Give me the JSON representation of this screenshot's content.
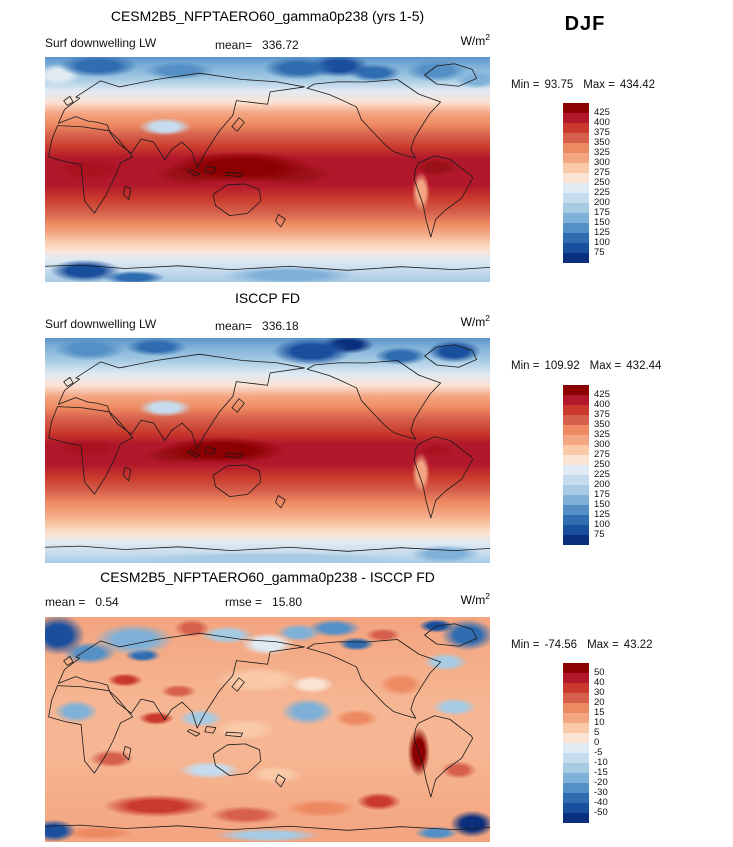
{
  "header": {
    "season": "DJF"
  },
  "chart_data": [
    {
      "type": "heatmap",
      "panel": "model",
      "title": "CESM2B5_NFPTAERO60_gamma0p238 (yrs 1-5)",
      "variable": "Surf downwelling LW",
      "season": "DJF",
      "units": "W/m^2",
      "mean": 336.72,
      "min": 93.75,
      "max": 434.42,
      "levels": [
        75,
        100,
        125,
        150,
        175,
        200,
        225,
        250,
        275,
        300,
        325,
        350,
        375,
        400,
        425
      ],
      "projection": "global equirectangular map, high values (dark red) in tropics, low values (blue) at poles",
      "legend_position": "right"
    },
    {
      "type": "heatmap",
      "panel": "observation",
      "title": "ISCCP FD",
      "variable": "Surf downwelling LW",
      "season": "DJF",
      "units": "W/m^2",
      "mean": 336.18,
      "min": 109.92,
      "max": 432.44,
      "levels": [
        75,
        100,
        125,
        150,
        175,
        200,
        225,
        250,
        275,
        300,
        325,
        350,
        375,
        400,
        425
      ],
      "projection": "global equirectangular map, high values (dark red) in tropics, low values (blue) at poles",
      "legend_position": "right"
    },
    {
      "type": "heatmap",
      "panel": "difference",
      "title": "CESM2B5_NFPTAERO60_gamma0p238 - ISCCP FD",
      "season": "DJF",
      "units": "W/m^2",
      "mean": 0.54,
      "rmse": 15.8,
      "min": -74.56,
      "max": 43.22,
      "levels": [
        -50,
        -40,
        -30,
        -20,
        -15,
        -10,
        -5,
        0,
        5,
        10,
        15,
        20,
        30,
        40,
        50
      ],
      "projection": "global equirectangular difference map, mottled red/blue anomalies",
      "legend_position": "right"
    }
  ],
  "panels": [
    {
      "title": "CESM2B5_NFPTAERO60_gamma0p238 (yrs 1-5)",
      "var_label": "Surf downwelling LW",
      "stats": [
        {
          "label": "mean=",
          "value": "336.72"
        }
      ],
      "units_base": "W/m",
      "units_exp": "2",
      "minmax": {
        "min_label": "Min =",
        "min": "93.75",
        "max_label": "Max =",
        "max": "434.42"
      },
      "colorbar": {
        "ticks": [
          "425",
          "400",
          "375",
          "350",
          "325",
          "300",
          "275",
          "250",
          "225",
          "200",
          "175",
          "150",
          "125",
          "100",
          "75"
        ],
        "colors": [
          "#8b0000",
          "#b2182b",
          "#ca3a2c",
          "#d6604d",
          "#ee8a62",
          "#f4a582",
          "#f9c9a8",
          "#fbe3d4",
          "#dfeaf3",
          "#c6dbed",
          "#a6cbe3",
          "#7fb0d8",
          "#5490c6",
          "#2f6cb0",
          "#1a4f9e",
          "#0a2f7c"
        ]
      },
      "field": {
        "base": [
          [
            0,
            "#5b93c9"
          ],
          [
            4,
            "#7fb0d8"
          ],
          [
            10,
            "#a6cbe3"
          ],
          [
            15,
            "#dfeaf3"
          ],
          [
            20,
            "#fbe3d4"
          ],
          [
            25,
            "#f4a582"
          ],
          [
            30,
            "#ee8a62"
          ],
          [
            35,
            "#d6604d"
          ],
          [
            40,
            "#ca3a2c"
          ],
          [
            45,
            "#b2182b"
          ],
          [
            57,
            "#b2182b"
          ],
          [
            63,
            "#ca3a2c"
          ],
          [
            69,
            "#d6604d"
          ],
          [
            74,
            "#ee8a62"
          ],
          [
            78,
            "#f4a582"
          ],
          [
            82,
            "#f9c9a8"
          ],
          [
            86,
            "#fbe3d4"
          ],
          [
            90,
            "#dfeaf3"
          ],
          [
            95,
            "#c6dbed"
          ],
          [
            100,
            "#a6cbe3"
          ]
        ],
        "blobs": [
          [
            12,
            4,
            9,
            5,
            "#2f6cb0"
          ],
          [
            3,
            8,
            5,
            5,
            "#dfeaf3"
          ],
          [
            30,
            6,
            8,
            4,
            "#5490c6"
          ],
          [
            57,
            5,
            8,
            5,
            "#2f6cb0"
          ],
          [
            66,
            4,
            7,
            5,
            "#1a4f9e"
          ],
          [
            74,
            7,
            6,
            4,
            "#2f6cb0"
          ],
          [
            88,
            6,
            7,
            5,
            "#5490c6"
          ],
          [
            97,
            10,
            5,
            4,
            "#7fb0d8"
          ],
          [
            27,
            31,
            6,
            4,
            "#c6dbed"
          ],
          [
            44,
            49,
            16,
            7,
            "#8b0000"
          ],
          [
            33,
            52,
            9,
            5,
            "#9b1118"
          ],
          [
            55,
            52,
            10,
            5,
            "#9b1118"
          ],
          [
            10,
            50,
            8,
            5,
            "#ab1220"
          ],
          [
            88,
            49,
            5,
            4,
            "#9b1118"
          ],
          [
            84.5,
            60,
            2,
            9,
            "#f4a582"
          ],
          [
            9,
            95,
            8,
            5,
            "#1a4f9e"
          ],
          [
            20,
            98,
            7,
            3,
            "#2f6cb0"
          ],
          [
            55,
            97,
            15,
            4,
            "#7fb0d8"
          ]
        ]
      }
    },
    {
      "title": "ISCCP FD",
      "var_label": "Surf downwelling LW",
      "stats": [
        {
          "label": "mean=",
          "value": "336.18"
        }
      ],
      "units_base": "W/m",
      "units_exp": "2",
      "minmax": {
        "min_label": "Min =",
        "min": "109.92",
        "max_label": "Max =",
        "max": "432.44"
      },
      "colorbar": {
        "ticks": [
          "425",
          "400",
          "375",
          "350",
          "325",
          "300",
          "275",
          "250",
          "225",
          "200",
          "175",
          "150",
          "125",
          "100",
          "75"
        ],
        "colors": [
          "#8b0000",
          "#b2182b",
          "#ca3a2c",
          "#d6604d",
          "#ee8a62",
          "#f4a582",
          "#f9c9a8",
          "#fbe3d4",
          "#dfeaf3",
          "#c6dbed",
          "#a6cbe3",
          "#7fb0d8",
          "#5490c6",
          "#2f6cb0",
          "#1a4f9e",
          "#0a2f7c"
        ]
      },
      "field": {
        "base": [
          [
            0,
            "#5b93c9"
          ],
          [
            4,
            "#7fb0d8"
          ],
          [
            10,
            "#a6cbe3"
          ],
          [
            16,
            "#dfeaf3"
          ],
          [
            21,
            "#fbe3d4"
          ],
          [
            26,
            "#f4a582"
          ],
          [
            31,
            "#ee8a62"
          ],
          [
            36,
            "#d6604d"
          ],
          [
            42,
            "#ca3a2c"
          ],
          [
            47,
            "#b2182b"
          ],
          [
            56,
            "#b2182b"
          ],
          [
            62,
            "#ca3a2c"
          ],
          [
            68,
            "#d6604d"
          ],
          [
            73,
            "#ee8a62"
          ],
          [
            78,
            "#f4a582"
          ],
          [
            83,
            "#f9c9a8"
          ],
          [
            87,
            "#fbe3d4"
          ],
          [
            91,
            "#dfeaf3"
          ],
          [
            96,
            "#c6dbed"
          ],
          [
            100,
            "#a6cbe3"
          ]
        ],
        "blobs": [
          [
            10,
            5,
            8,
            5,
            "#5490c6"
          ],
          [
            25,
            4,
            7,
            4,
            "#2f6cb0"
          ],
          [
            60,
            6,
            9,
            6,
            "#1a4f9e"
          ],
          [
            68,
            3,
            6,
            4,
            "#0a2f7c"
          ],
          [
            80,
            8,
            6,
            4,
            "#2f6cb0"
          ],
          [
            92,
            6,
            6,
            5,
            "#1a4f9e"
          ],
          [
            27,
            31,
            6,
            4,
            "#c6dbed"
          ],
          [
            40,
            50,
            14,
            6,
            "#8b0000"
          ],
          [
            30,
            52,
            8,
            4,
            "#9b1118"
          ],
          [
            10,
            49,
            7,
            4,
            "#ab1220"
          ],
          [
            88,
            50,
            4,
            3,
            "#ab1220"
          ],
          [
            84.5,
            60,
            2,
            9,
            "#f4a582"
          ],
          [
            50,
            98,
            30,
            3,
            "#a6cbe3"
          ],
          [
            90,
            96,
            8,
            4,
            "#7fb0d8"
          ]
        ]
      }
    },
    {
      "title": "CESM2B5_NFPTAERO60_gamma0p238 - ISCCP FD",
      "stats": [
        {
          "label": "mean =",
          "value": "0.54"
        },
        {
          "label": "rmse =",
          "value": "15.80"
        }
      ],
      "units_base": "W/m",
      "units_exp": "2",
      "minmax": {
        "min_label": "Min =",
        "min": "-74.56",
        "max_label": "Max =",
        "max": "43.22"
      },
      "colorbar": {
        "ticks": [
          "50",
          "40",
          "30",
          "20",
          "15",
          "10",
          "5",
          "0",
          "-5",
          "-10",
          "-15",
          "-20",
          "-30",
          "-40",
          "-50"
        ],
        "colors": [
          "#8b0000",
          "#b2182b",
          "#ca3a2c",
          "#d6604d",
          "#ee8a62",
          "#f4a582",
          "#f9c9a8",
          "#fbe3d4",
          "#dfeaf3",
          "#c6dbed",
          "#a6cbe3",
          "#7fb0d8",
          "#5490c6",
          "#2f6cb0",
          "#1a4f9e",
          "#0a2f7c"
        ]
      },
      "field": {
        "base": [
          [
            0,
            "#f3a47f"
          ],
          [
            40,
            "#f6b693"
          ],
          [
            60,
            "#f6b693"
          ],
          [
            100,
            "#f3a47f"
          ]
        ],
        "blobs": [
          [
            3,
            8,
            6,
            9,
            "#1a4f9e"
          ],
          [
            10,
            16,
            6,
            5,
            "#5490c6"
          ],
          [
            20,
            10,
            9,
            7,
            "#7fb0d8"
          ],
          [
            22,
            17,
            4,
            3,
            "#2f6cb0"
          ],
          [
            33,
            5,
            4,
            4,
            "#d6604d"
          ],
          [
            41,
            8,
            6,
            4,
            "#a6cbe3"
          ],
          [
            50,
            12,
            6,
            5,
            "#dfeaf3"
          ],
          [
            57,
            7,
            5,
            4,
            "#7fb0d8"
          ],
          [
            65,
            5,
            6,
            4,
            "#5490c6"
          ],
          [
            70,
            12,
            4,
            3,
            "#2f6cb0"
          ],
          [
            76,
            8,
            4,
            3,
            "#d6604d"
          ],
          [
            95,
            8,
            6,
            7,
            "#2f6cb0"
          ],
          [
            88,
            4,
            4,
            3,
            "#1a4f9e"
          ],
          [
            90,
            20,
            5,
            4,
            "#a6cbe3"
          ],
          [
            18,
            28,
            4,
            3,
            "#ca3a2c"
          ],
          [
            30,
            33,
            4,
            3,
            "#d6604d"
          ],
          [
            48,
            28,
            10,
            6,
            "#f9c9a8"
          ],
          [
            60,
            30,
            5,
            4,
            "#fbe3d4"
          ],
          [
            80,
            30,
            5,
            5,
            "#ee8a62"
          ],
          [
            7,
            42,
            5,
            5,
            "#7fb0d8"
          ],
          [
            25,
            45,
            4,
            3,
            "#ca3a2c"
          ],
          [
            35,
            45,
            5,
            4,
            "#a6cbe3"
          ],
          [
            45,
            50,
            7,
            5,
            "#f9c9a8"
          ],
          [
            59,
            42,
            6,
            6,
            "#7fb0d8"
          ],
          [
            70,
            45,
            5,
            4,
            "#ee8a62"
          ],
          [
            84,
            60,
            2.5,
            11,
            "#8b0000"
          ],
          [
            92,
            40,
            5,
            4,
            "#a6cbe3"
          ],
          [
            93,
            68,
            4,
            4,
            "#d6604d"
          ],
          [
            15,
            63,
            5,
            4,
            "#d6604d"
          ],
          [
            37,
            68,
            7,
            4,
            "#c6dbed"
          ],
          [
            52,
            70,
            6,
            4,
            "#f9c9a8"
          ],
          [
            25,
            84,
            12,
            5,
            "#ca3a2c"
          ],
          [
            45,
            88,
            8,
            4,
            "#d6604d"
          ],
          [
            62,
            85,
            8,
            4,
            "#ee8a62"
          ],
          [
            75,
            82,
            5,
            4,
            "#ca3a2c"
          ],
          [
            2,
            95,
            5,
            5,
            "#1a4f9e"
          ],
          [
            96,
            92,
            5,
            6,
            "#0a2f7c"
          ],
          [
            88,
            96,
            5,
            3,
            "#5490c6"
          ],
          [
            50,
            97,
            12,
            3,
            "#a6cbe3"
          ],
          [
            12,
            96,
            8,
            3,
            "#ee8a62"
          ]
        ]
      }
    }
  ]
}
